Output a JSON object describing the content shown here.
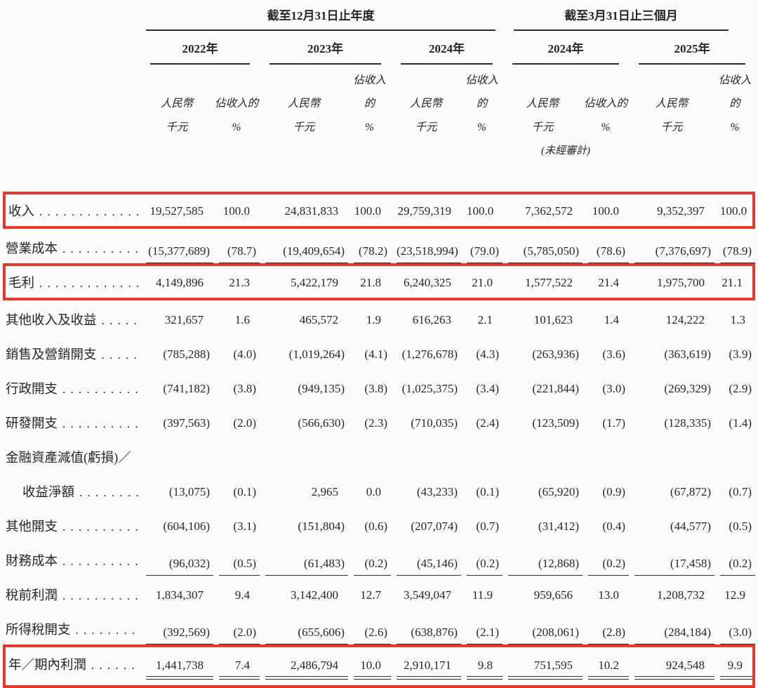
{
  "page": {
    "background": "#fcfbf9",
    "text_color": "#26262c",
    "highlight_color": "#e23a2c"
  },
  "table": {
    "col_groups": [
      {
        "title": "截至12月31日止年度"
      },
      {
        "title": "截至3月31日止三個月"
      }
    ],
    "periods": [
      {
        "year": "2022年",
        "note": ""
      },
      {
        "year": "2023年",
        "note": ""
      },
      {
        "year": "2024年",
        "note": ""
      },
      {
        "year": "2024年",
        "note": "(未經審計)"
      },
      {
        "year": "2025年",
        "note": ""
      }
    ],
    "subheaders": {
      "amount": [
        "人民幣",
        "千元"
      ],
      "percent": [
        "佔收入的",
        "%"
      ]
    },
    "rows": [
      {
        "label": "收入",
        "leader": true,
        "bold": true,
        "redbox": true,
        "values": [
          "19,527,585",
          "100.0",
          "24,831,833",
          "100.0",
          "29,759,319",
          "100.0",
          "7,362,572",
          "100.0",
          "9,352,397",
          "100.0"
        ]
      },
      {
        "label": "營業成本",
        "leader": true,
        "underline": "single",
        "values": [
          "(15,377,689)",
          "(78.7)",
          "(19,409,654)",
          "(78.2)",
          "(23,518,994)",
          "(79.0)",
          "(5,785,050)",
          "(78.6)",
          "(7,376,697)",
          "(78.9)"
        ]
      },
      {
        "label": "毛利",
        "leader": true,
        "bold": true,
        "redbox": true,
        "values": [
          "4,149,896",
          "21.3",
          "5,422,179",
          "21.8",
          "6,240,325",
          "21.0",
          "1,577,522",
          "21.4",
          "1,975,700",
          "21.1"
        ]
      },
      {
        "label": "其他收入及收益",
        "leader": true,
        "values": [
          "321,657",
          "1.6",
          "465,572",
          "1.9",
          "616,263",
          "2.1",
          "101,623",
          "1.4",
          "124,222",
          "1.3"
        ]
      },
      {
        "label": "銷售及營銷開支",
        "leader": true,
        "values": [
          "(785,288)",
          "(4.0)",
          "(1,019,264)",
          "(4.1)",
          "(1,276,678)",
          "(4.3)",
          "(263,936)",
          "(3.6)",
          "(363,619)",
          "(3.9)"
        ]
      },
      {
        "label": "行政開支",
        "leader": true,
        "values": [
          "(741,182)",
          "(3.8)",
          "(949,135)",
          "(3.8)",
          "(1,025,375)",
          "(3.4)",
          "(221,844)",
          "(3.0)",
          "(269,329)",
          "(2.9)"
        ]
      },
      {
        "label": "研發開支",
        "leader": true,
        "values": [
          "(397,563)",
          "(2.0)",
          "(566,630)",
          "(2.3)",
          "(710,035)",
          "(2.4)",
          "(123,509)",
          "(1.7)",
          "(128,335)",
          "(1.4)"
        ]
      },
      {
        "label": "金融資產減值(虧損)／",
        "label_only": true
      },
      {
        "label": "收益淨額",
        "leader": true,
        "indent": true,
        "values": [
          "(13,075)",
          "(0.1)",
          "2,965",
          "0.0",
          "(43,233)",
          "(0.1)",
          "(65,920)",
          "(0.9)",
          "(67,872)",
          "(0.7)"
        ]
      },
      {
        "label": "其他開支",
        "leader": true,
        "values": [
          "(604,106)",
          "(3.1)",
          "(151,804)",
          "(0.6)",
          "(207,074)",
          "(0.7)",
          "(31,412)",
          "(0.4)",
          "(44,577)",
          "(0.5)"
        ]
      },
      {
        "label": "財務成本",
        "leader": true,
        "underline": "single",
        "values": [
          "(96,032)",
          "(0.5)",
          "(61,483)",
          "(0.2)",
          "(45,146)",
          "(0.2)",
          "(12,868)",
          "(0.2)",
          "(17,458)",
          "(0.2)"
        ]
      },
      {
        "label": "稅前利潤",
        "leader": true,
        "bold": true,
        "values": [
          "1,834,307",
          "9.4",
          "3,142,400",
          "12.7",
          "3,549,047",
          "11.9",
          "959,656",
          "13.0",
          "1,208,732",
          "12.9"
        ]
      },
      {
        "label": "所得稅開支",
        "leader": true,
        "underline": "single",
        "values": [
          "(392,569)",
          "(2.0)",
          "(655,606)",
          "(2.6)",
          "(638,876)",
          "(2.1)",
          "(208,061)",
          "(2.8)",
          "(284,184)",
          "(3.0)"
        ]
      },
      {
        "label": "年／期內利潤",
        "leader": true,
        "bold": true,
        "redbox": true,
        "underline": "double",
        "values": [
          "1,441,738",
          "7.4",
          "2,486,794",
          "10.0",
          "2,910,171",
          "9.8",
          "751,595",
          "10.2",
          "924,548",
          "9.9"
        ]
      }
    ]
  }
}
